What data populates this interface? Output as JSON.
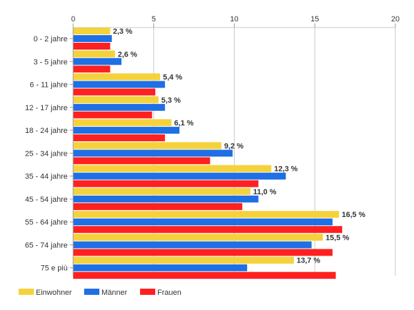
{
  "chart_data": {
    "type": "bar",
    "orientation": "horizontal",
    "categories": [
      "0 - 2 jahre",
      "3 - 5 jahre",
      "6 - 11 jahre",
      "12 - 17 jahre",
      "18 - 24 jahre",
      "25 - 34 jahre",
      "35 - 44 jahre",
      "45 - 54 jahre",
      "55 - 64 jahre",
      "65 - 74 jahre",
      "75 e più"
    ],
    "series": [
      {
        "name": "Einwohner",
        "color": "#f5d23c",
        "values": [
          2.3,
          2.6,
          5.4,
          5.3,
          6.1,
          9.2,
          12.3,
          11.0,
          16.5,
          15.5,
          13.7
        ],
        "labels": [
          "2,3 %",
          "2,6 %",
          "5,4 %",
          "5,3 %",
          "6,1 %",
          "9,2 %",
          "12,3 %",
          "11,0 %",
          "16,5 %",
          "15,5 %",
          "13,7 %"
        ]
      },
      {
        "name": "Männer",
        "color": "#1f6fe5",
        "values": [
          2.4,
          3.0,
          5.7,
          5.7,
          6.6,
          9.9,
          13.2,
          11.5,
          16.1,
          14.8,
          10.8
        ]
      },
      {
        "name": "Frauen",
        "color": "#ff2020",
        "values": [
          2.3,
          2.3,
          5.1,
          4.9,
          5.7,
          8.5,
          11.5,
          10.5,
          16.7,
          16.1,
          16.3
        ]
      }
    ],
    "xlim": [
      0,
      20
    ],
    "xticks": [
      "0",
      "5",
      "10",
      "15",
      "20"
    ],
    "grid": true,
    "legend_position": "bottom-left"
  }
}
